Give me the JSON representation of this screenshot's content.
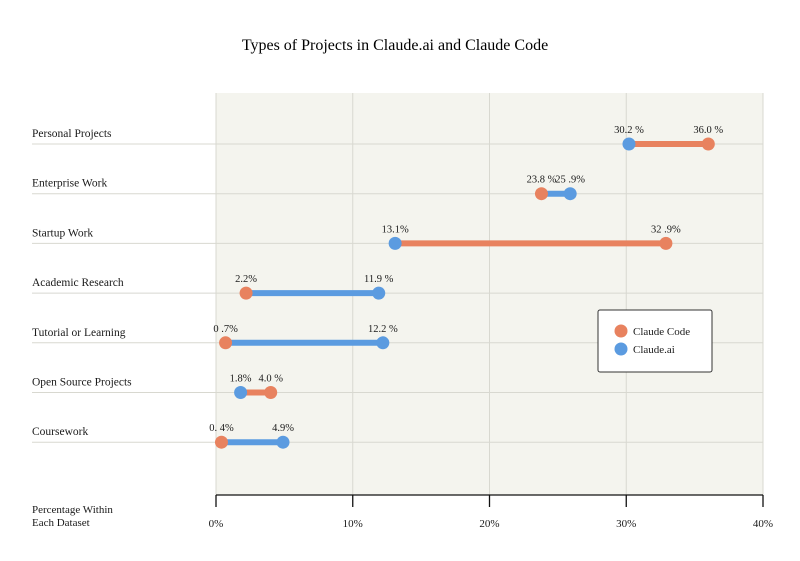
{
  "chart_data": {
    "type": "dumbbell",
    "title": "Types of Projects in Claude.ai and Claude Code",
    "xlabel": "Percentage Within Each Dataset",
    "xlim": [
      0,
      40
    ],
    "x_ticks": [
      0,
      10,
      20,
      30,
      40
    ],
    "x_tick_labels": [
      "0%",
      "10%",
      "20%",
      "30%",
      "40%"
    ],
    "grid": true,
    "legend_position": "right",
    "categories": [
      "Personal Projects",
      "Enterprise Work",
      "Startup Work",
      "Academic Research",
      "Tutorial or Learning",
      "Open Source Projects",
      "Coursework"
    ],
    "series": [
      {
        "name": "Claude Code",
        "color": "#E8825F",
        "values": [
          36.0,
          23.8,
          32.9,
          2.2,
          0.7,
          4.0,
          0.4
        ],
        "labels": [
          "36.0 %",
          "23.8 %",
          "32 .9%",
          "2.2%",
          "0 .7%",
          "4.0 %",
          "0. 4%"
        ]
      },
      {
        "name": "Claude.ai",
        "color": "#5B9BE0",
        "values": [
          30.2,
          25.9,
          13.1,
          11.9,
          12.2,
          1.8,
          4.9
        ],
        "labels": [
          "30.2 %",
          "25 .9%",
          "13.1%",
          "11.9 %",
          "12.2 %",
          "1.8%",
          "4.9%"
        ]
      }
    ],
    "background_color": "#F4F4EE",
    "grid_color": "#D8D8D0"
  }
}
